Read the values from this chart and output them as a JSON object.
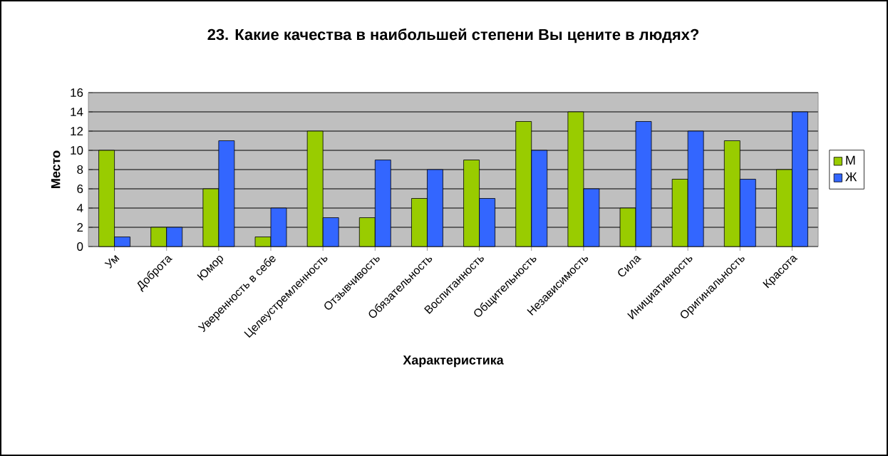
{
  "chart_data": {
    "type": "bar",
    "title": "23. Какие качества в наибольшей степени Вы цените в людях?",
    "xlabel": "Характеристика",
    "ylabel": "Место",
    "categories": [
      "Ум",
      "Доброта",
      "Юмор",
      "Уверенность в себе",
      "Целеустремленность",
      "Отзывчивость",
      "Обязательность",
      "Воспитанность",
      "Общительность",
      "Независимость",
      "Сила",
      "Инициативность",
      "Оригинальность",
      "Красота"
    ],
    "series": [
      {
        "name": "М",
        "color": "#99cc00",
        "values": [
          10,
          2,
          6,
          1,
          12,
          3,
          5,
          9,
          13,
          14,
          4,
          7,
          11,
          8
        ]
      },
      {
        "name": "Ж",
        "color": "#3366ff",
        "values": [
          1,
          2,
          11,
          4,
          3,
          9,
          8,
          5,
          10,
          6,
          13,
          12,
          7,
          14
        ]
      }
    ],
    "ylim": [
      0,
      16
    ],
    "yticks": [
      0,
      2,
      4,
      6,
      8,
      10,
      12,
      14,
      16
    ],
    "grid": "y",
    "legend": "right"
  }
}
